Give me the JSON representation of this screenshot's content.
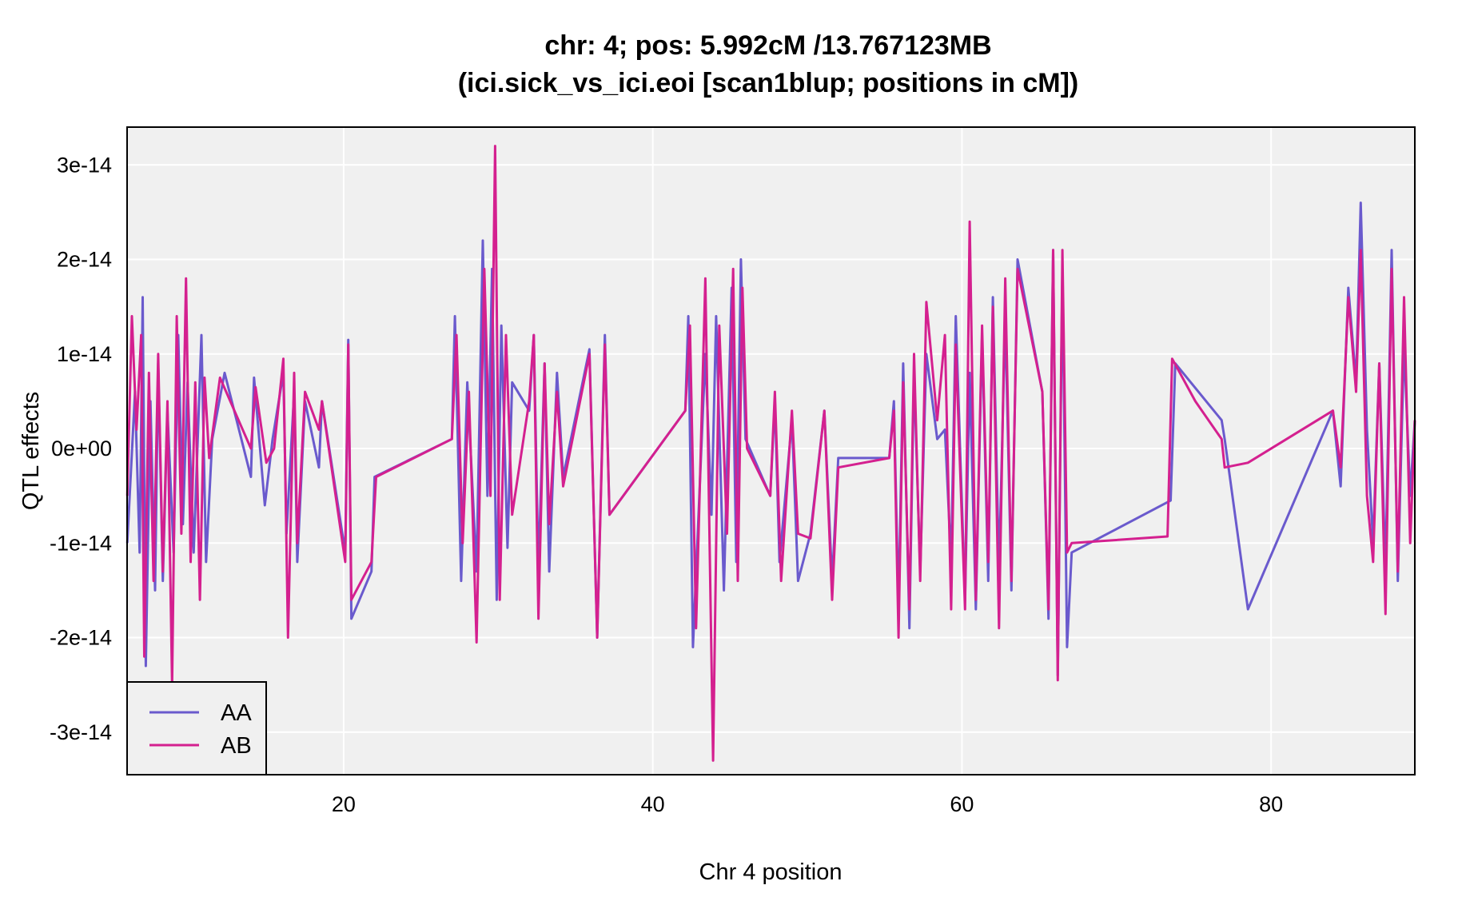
{
  "chart_data": {
    "type": "line",
    "title": "chr: 4; pos: 5.992cM /13.767123MB",
    "subtitle": "(ici.sick_vs_ici.eoi [scan1blup; positions in cM])",
    "xlabel": "Chr 4 position",
    "ylabel": "QTL effects",
    "xlim": [
      5.99,
      89.3
    ],
    "ylim": [
      -3.45e-14,
      3.4e-14
    ],
    "x_ticks": [
      20,
      40,
      60,
      80
    ],
    "x_tick_labels": [
      "20",
      "40",
      "60",
      "80"
    ],
    "y_ticks": [
      -3e-14,
      -2e-14,
      -1e-14,
      0,
      1e-14,
      2e-14,
      3e-14
    ],
    "y_tick_labels": [
      "-3e-14",
      "-2e-14",
      "-1e-14",
      "0e+00",
      "1e-14",
      "2e-14",
      "3e-14"
    ],
    "grid": true,
    "legend_position": "bottom-left",
    "colors": {
      "panel_bg": "#f0f0f0",
      "grid": "#ffffff",
      "AA": "#6a5acd",
      "AB": "#d4208f"
    },
    "series": [
      {
        "name": "AA",
        "x": [
          6.0,
          6.5,
          6.8,
          7.0,
          7.2,
          7.5,
          7.8,
          8.0,
          8.3,
          8.6,
          9.0,
          9.3,
          9.6,
          9.9,
          10.3,
          10.8,
          11.1,
          11.5,
          12.3,
          14.0,
          14.2,
          14.9,
          15.4,
          16.1,
          16.3,
          16.8,
          17.0,
          17.5,
          18.4,
          18.6,
          20.1,
          20.3,
          20.5,
          21.8,
          22.0,
          27.0,
          27.2,
          27.6,
          28.0,
          28.6,
          29.0,
          29.3,
          29.6,
          29.9,
          30.2,
          30.6,
          30.9,
          32.0,
          32.3,
          32.6,
          33.0,
          33.3,
          33.8,
          34.2,
          35.9,
          36.4,
          36.9,
          37.2,
          42.1,
          42.3,
          42.6,
          43.4,
          43.8,
          44.1,
          44.6,
          45.1,
          45.4,
          45.7,
          46.0,
          47.6,
          47.9,
          48.2,
          49.0,
          49.4,
          50.2,
          51.1,
          51.6,
          52.0,
          55.3,
          55.6,
          55.9,
          56.2,
          56.6,
          56.9,
          57.3,
          57.7,
          58.4,
          58.9,
          59.3,
          59.6,
          60.2,
          60.5,
          60.9,
          61.3,
          61.7,
          62.0,
          62.4,
          62.8,
          63.2,
          63.6,
          65.2,
          65.6,
          65.9,
          66.2,
          66.5,
          66.8,
          67.1,
          73.5,
          73.8,
          75.3,
          76.8,
          77.0,
          78.5,
          84.0,
          84.5,
          85.0,
          85.5,
          85.8,
          86.2,
          86.6,
          87.0,
          87.4,
          87.8,
          88.2,
          88.6,
          89.0,
          89.3
        ],
        "y": [
          -1e-14,
          6e-15,
          -1.1e-14,
          1.6e-14,
          -2.3e-14,
          5e-15,
          -1.5e-14,
          9e-15,
          -1.4e-14,
          4e-15,
          -1.1e-14,
          1.2e-14,
          -8e-15,
          7e-15,
          -1.1e-14,
          1.2e-14,
          -1.2e-14,
          1e-15,
          8e-15,
          -3e-15,
          7.5e-15,
          -6e-15,
          1e-15,
          8e-15,
          -9e-15,
          6e-15,
          -1.2e-14,
          5e-15,
          -2e-15,
          5e-15,
          -1.1e-14,
          1.15e-14,
          -1.8e-14,
          -1.3e-14,
          -3e-15,
          1e-15,
          1.4e-14,
          -1.4e-14,
          7e-15,
          -1.3e-14,
          2.2e-14,
          -5e-15,
          1.9e-14,
          -1.6e-14,
          1.3e-14,
          -1.05e-14,
          7e-15,
          4e-15,
          1.2e-14,
          -1.3e-14,
          9e-15,
          -1.3e-14,
          8e-15,
          -3e-15,
          1.05e-14,
          -2e-14,
          1.2e-14,
          -7e-15,
          4e-15,
          1.4e-14,
          -2.1e-14,
          1e-14,
          -7e-15,
          1.4e-14,
          -1.5e-14,
          1.7e-14,
          -1.2e-14,
          2e-14,
          1e-15,
          -5e-15,
          5e-15,
          -1.2e-14,
          3e-15,
          -1.4e-14,
          -9e-15,
          4e-15,
          -1.4e-14,
          -1e-15,
          -1e-15,
          5e-15,
          -1.7e-14,
          9e-15,
          -1.9e-14,
          8e-15,
          -1.3e-14,
          1e-14,
          1e-15,
          2e-15,
          -1.2e-14,
          1.4e-14,
          -1.6e-14,
          8e-15,
          -1.7e-14,
          1.2e-14,
          -1.4e-14,
          1.6e-14,
          -1.3e-14,
          1.4e-14,
          -1.5e-14,
          2e-14,
          6e-15,
          -1.8e-14,
          2.1e-14,
          -2.4e-14,
          1.9e-14,
          -2.1e-14,
          -1.1e-14,
          -5.5e-15,
          9e-15,
          6e-15,
          3e-15,
          1e-15,
          -1.7e-14,
          4e-15,
          -4e-15,
          1.7e-14,
          7e-15,
          2.6e-14,
          2e-15,
          -1e-14,
          9e-15,
          -1.3e-14,
          2.1e-14,
          -1.4e-14,
          1.1e-14,
          -5e-15,
          3e-15
        ],
        "name_ref": "AA"
      },
      {
        "name": "AB",
        "x": [
          6.0,
          6.3,
          6.6,
          6.9,
          7.1,
          7.4,
          7.7,
          8.0,
          8.3,
          8.6,
          8.9,
          9.2,
          9.5,
          9.8,
          10.1,
          10.4,
          10.7,
          11.0,
          11.3,
          12.0,
          14.0,
          14.3,
          15.0,
          15.5,
          16.1,
          16.4,
          16.8,
          17.0,
          17.5,
          18.4,
          18.6,
          20.1,
          20.3,
          20.5,
          21.8,
          22.1,
          27.0,
          27.3,
          27.7,
          28.1,
          28.6,
          29.1,
          29.5,
          29.8,
          30.1,
          30.5,
          30.9,
          32.0,
          32.3,
          32.6,
          33.0,
          33.3,
          33.8,
          34.2,
          35.9,
          36.4,
          36.9,
          37.2,
          42.1,
          42.4,
          42.8,
          43.4,
          43.9,
          44.3,
          44.8,
          45.2,
          45.5,
          45.8,
          46.1,
          47.6,
          47.9,
          48.3,
          49.0,
          49.4,
          50.2,
          51.1,
          51.6,
          52.0,
          55.3,
          55.6,
          55.9,
          56.2,
          56.6,
          56.9,
          57.3,
          57.7,
          58.4,
          58.9,
          59.3,
          59.6,
          60.2,
          60.5,
          60.9,
          61.3,
          61.7,
          62.0,
          62.4,
          62.8,
          63.2,
          63.6,
          65.2,
          65.6,
          65.9,
          66.2,
          66.5,
          66.8,
          67.1,
          73.3,
          73.6,
          75.1,
          76.8,
          77.0,
          78.5,
          84.0,
          84.5,
          85.0,
          85.5,
          85.8,
          86.2,
          86.6,
          87.0,
          87.4,
          87.8,
          88.2,
          88.6,
          89.0,
          89.3
        ],
        "y": [
          -5e-15,
          1.4e-14,
          2e-15,
          1.2e-14,
          -2.2e-14,
          8e-15,
          -1.4e-14,
          1e-14,
          -1.3e-14,
          5e-15,
          -2.5e-14,
          1.4e-14,
          -9e-15,
          1.8e-14,
          -1.2e-14,
          7e-15,
          -1.6e-14,
          7.5e-15,
          -1e-15,
          7.5e-15,
          0.0,
          6.5e-15,
          -1.5e-15,
          0.0,
          9.5e-15,
          -2e-14,
          8e-15,
          -1e-14,
          6e-15,
          2e-15,
          5e-15,
          -1.2e-14,
          1.1e-14,
          -1.6e-14,
          -1.2e-14,
          -3e-15,
          1e-15,
          1.2e-14,
          -1e-14,
          6e-15,
          -2.05e-14,
          1.9e-14,
          -5e-15,
          3.2e-14,
          -1.6e-14,
          1.2e-14,
          -7e-15,
          5e-15,
          1.2e-14,
          -1.8e-14,
          9e-15,
          -8e-15,
          6e-15,
          -4e-15,
          1e-14,
          -2e-14,
          1.1e-14,
          -7e-15,
          4e-15,
          1.3e-14,
          -1.9e-14,
          1.8e-14,
          -3.3e-14,
          1.3e-14,
          -9e-15,
          1.9e-14,
          -1.4e-14,
          1.7e-14,
          0.0,
          -5e-15,
          6e-15,
          -1.4e-14,
          4e-15,
          -9e-15,
          -9.5e-15,
          4e-15,
          -1.6e-14,
          -2e-15,
          -1e-15,
          4e-15,
          -2e-14,
          7e-15,
          -1.7e-14,
          1e-14,
          -1.4e-14,
          1.55e-14,
          3e-15,
          1.2e-14,
          -1.7e-14,
          1.1e-14,
          -1.7e-14,
          2.4e-14,
          -1.6e-14,
          1.3e-14,
          -1.2e-14,
          1.5e-14,
          -1.9e-14,
          1.8e-14,
          -1.4e-14,
          1.9e-14,
          6e-15,
          -1.7e-14,
          2.1e-14,
          -2.45e-14,
          2.1e-14,
          -1.1e-14,
          -1e-14,
          -9.3e-15,
          9.5e-15,
          5e-15,
          1e-15,
          -2e-15,
          -1.5e-15,
          4e-15,
          -2e-15,
          1.6e-14,
          6e-15,
          2.1e-14,
          -5e-15,
          -1.2e-14,
          9e-15,
          -1.75e-14,
          1.9e-14,
          -1.3e-14,
          1.6e-14,
          -1e-14,
          3e-15
        ]
      }
    ]
  }
}
